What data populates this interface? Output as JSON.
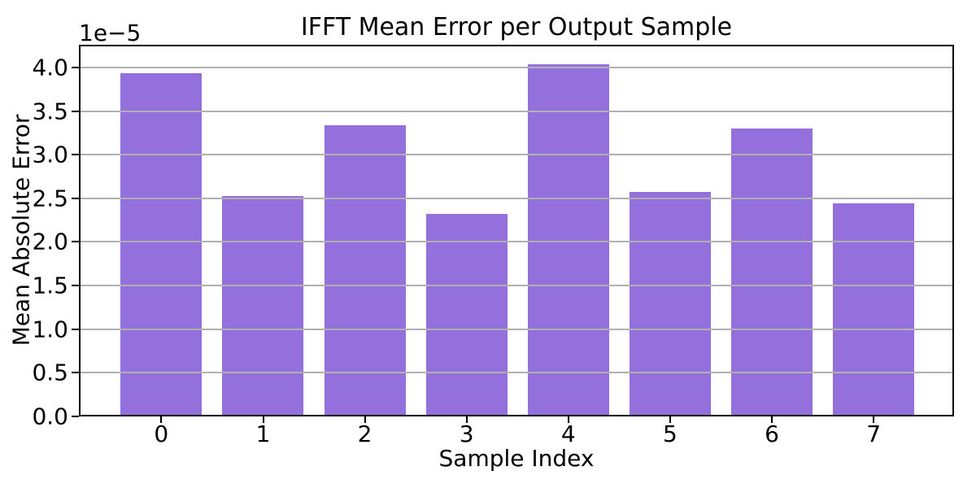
{
  "chart_data": {
    "type": "bar",
    "title": "IFFT Mean Error per Output Sample",
    "xlabel": "Sample Index",
    "ylabel": "Mean Absolute Error",
    "y_offset_text": "1e−5",
    "categories": [
      "0",
      "1",
      "2",
      "3",
      "4",
      "5",
      "6",
      "7"
    ],
    "values": [
      3.93e-05,
      2.53e-05,
      3.34e-05,
      2.32e-05,
      4.04e-05,
      2.57e-05,
      3.3e-05,
      2.44e-05
    ],
    "values_in_1e5_units": [
      3.93,
      2.53,
      3.34,
      2.32,
      4.04,
      2.57,
      3.3,
      2.44
    ],
    "xtick_labels": [
      "0",
      "1",
      "2",
      "3",
      "4",
      "5",
      "6",
      "7"
    ],
    "ytick_labels": [
      "0.0",
      "0.5",
      "1.0",
      "1.5",
      "2.0",
      "2.5",
      "3.0",
      "3.5",
      "4.0"
    ],
    "yticks_in_1e5_units": [
      0.0,
      0.5,
      1.0,
      1.5,
      2.0,
      2.5,
      3.0,
      3.5,
      4.0
    ],
    "ylim_in_1e5_units": [
      0,
      4.26
    ],
    "xlim": [
      -0.81,
      7.79
    ],
    "bar_width": 0.8,
    "grid": true,
    "legend_position": "none",
    "colors": {
      "bar": "#9370db",
      "grid": "#b0b0b0",
      "spine": "#000000",
      "text": "#000000",
      "background": "#ffffff"
    }
  }
}
